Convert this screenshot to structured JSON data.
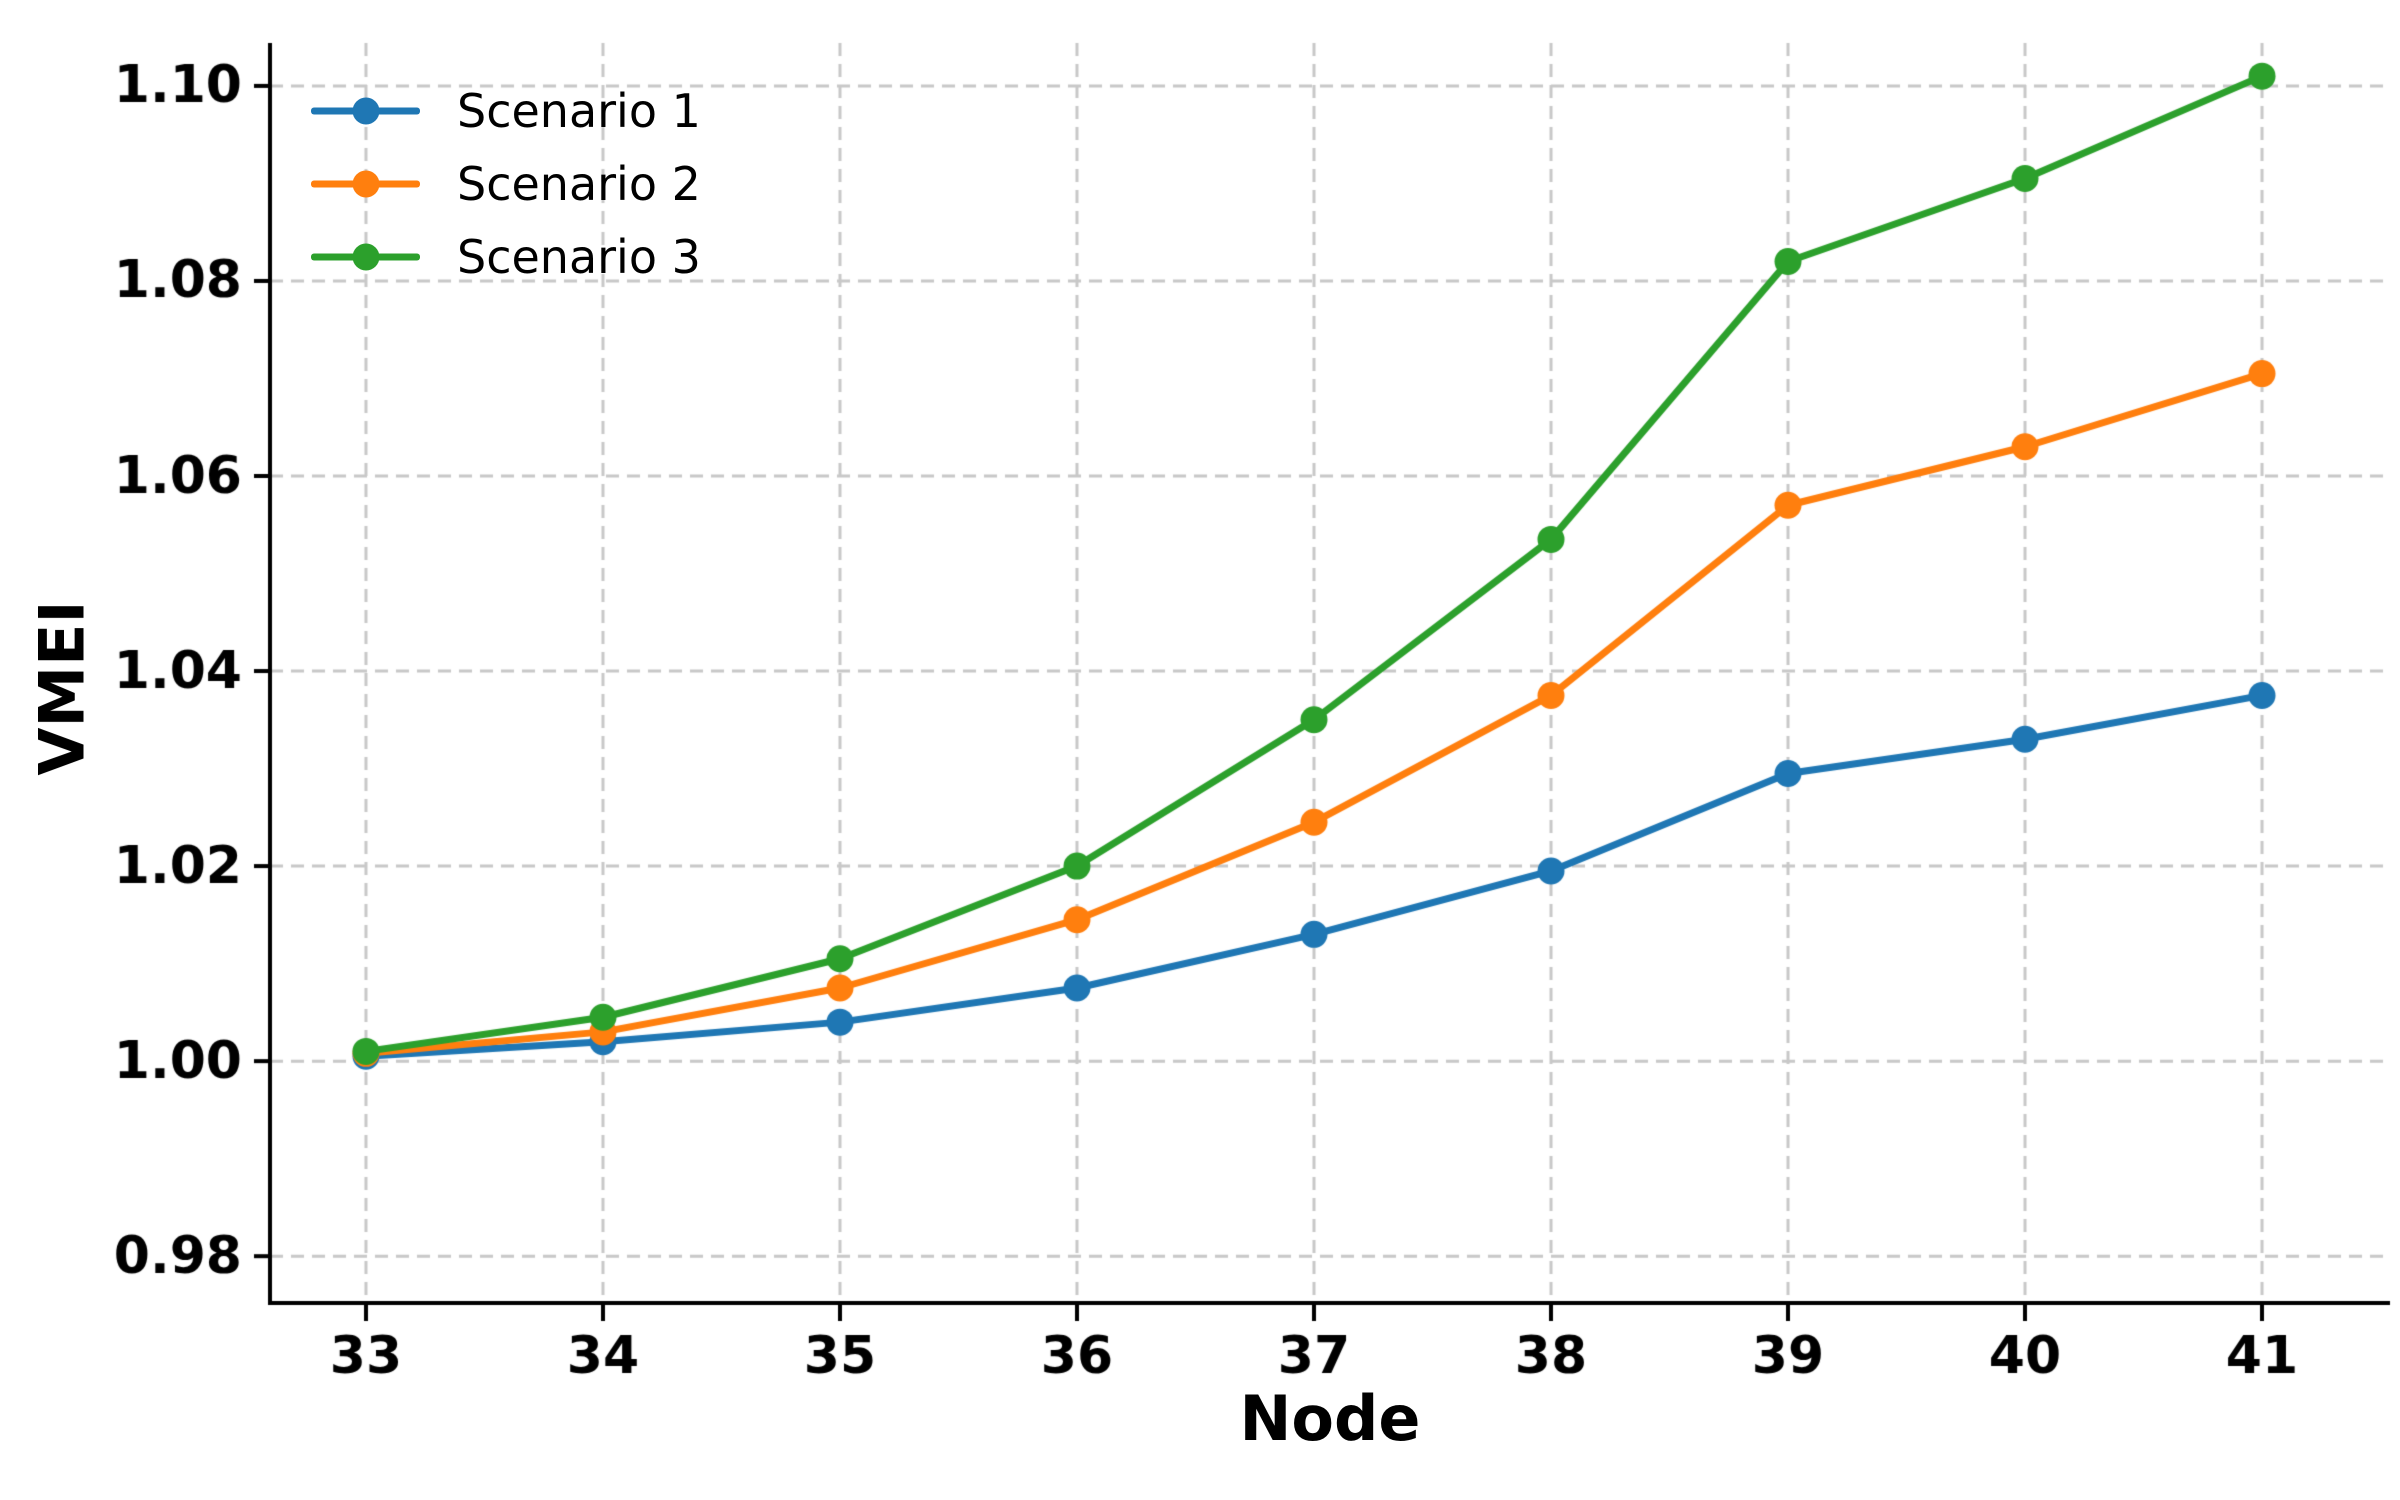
{
  "figure": {
    "background": "#ffffff"
  },
  "chart_data": {
    "type": "line",
    "title": "",
    "xlabel": "Node",
    "ylabel": "VMEI",
    "x": [
      33,
      34,
      35,
      36,
      37,
      38,
      39,
      40,
      41
    ],
    "series": [
      {
        "name": "Scenario 1",
        "color": "#1f77b4",
        "values": [
          1.0005,
          1.002,
          1.004,
          1.0075,
          1.013,
          1.0195,
          1.0295,
          1.033,
          1.0375
        ]
      },
      {
        "name": "Scenario 2",
        "color": "#ff7f0e",
        "values": [
          1.0008,
          1.003,
          1.0075,
          1.0145,
          1.0245,
          1.0375,
          1.057,
          1.063,
          1.0705
        ]
      },
      {
        "name": "Scenario 3",
        "color": "#2ca02c",
        "values": [
          1.001,
          1.0045,
          1.0105,
          1.02,
          1.035,
          1.0535,
          1.082,
          1.0905,
          1.101
        ]
      }
    ],
    "xticks": {
      "values": [
        33,
        34,
        35,
        36,
        37,
        38,
        39,
        40,
        41
      ],
      "labels": [
        "33",
        "34",
        "35",
        "36",
        "37",
        "38",
        "39",
        "40",
        "41"
      ]
    },
    "yticks": {
      "values": [
        0.98,
        1.0,
        1.02,
        1.04,
        1.06,
        1.08,
        1.1
      ],
      "labels": [
        "0.98",
        "1.00",
        "1.02",
        "1.04",
        "1.06",
        "1.08",
        "1.10"
      ]
    },
    "xlim": [
      32.595,
      41.54
    ],
    "ylim": [
      0.9752,
      1.1044
    ],
    "grid": {
      "visible": true,
      "style": "dashed",
      "color": "#c8c8c8"
    },
    "legend": {
      "position": "upper-left",
      "frame": false,
      "entries": [
        "Scenario 1",
        "Scenario 2",
        "Scenario 3"
      ]
    },
    "marker": "circle",
    "line_width": 7,
    "marker_radius": 13.5,
    "spine_color": "#000000",
    "text_color": "#000000"
  }
}
